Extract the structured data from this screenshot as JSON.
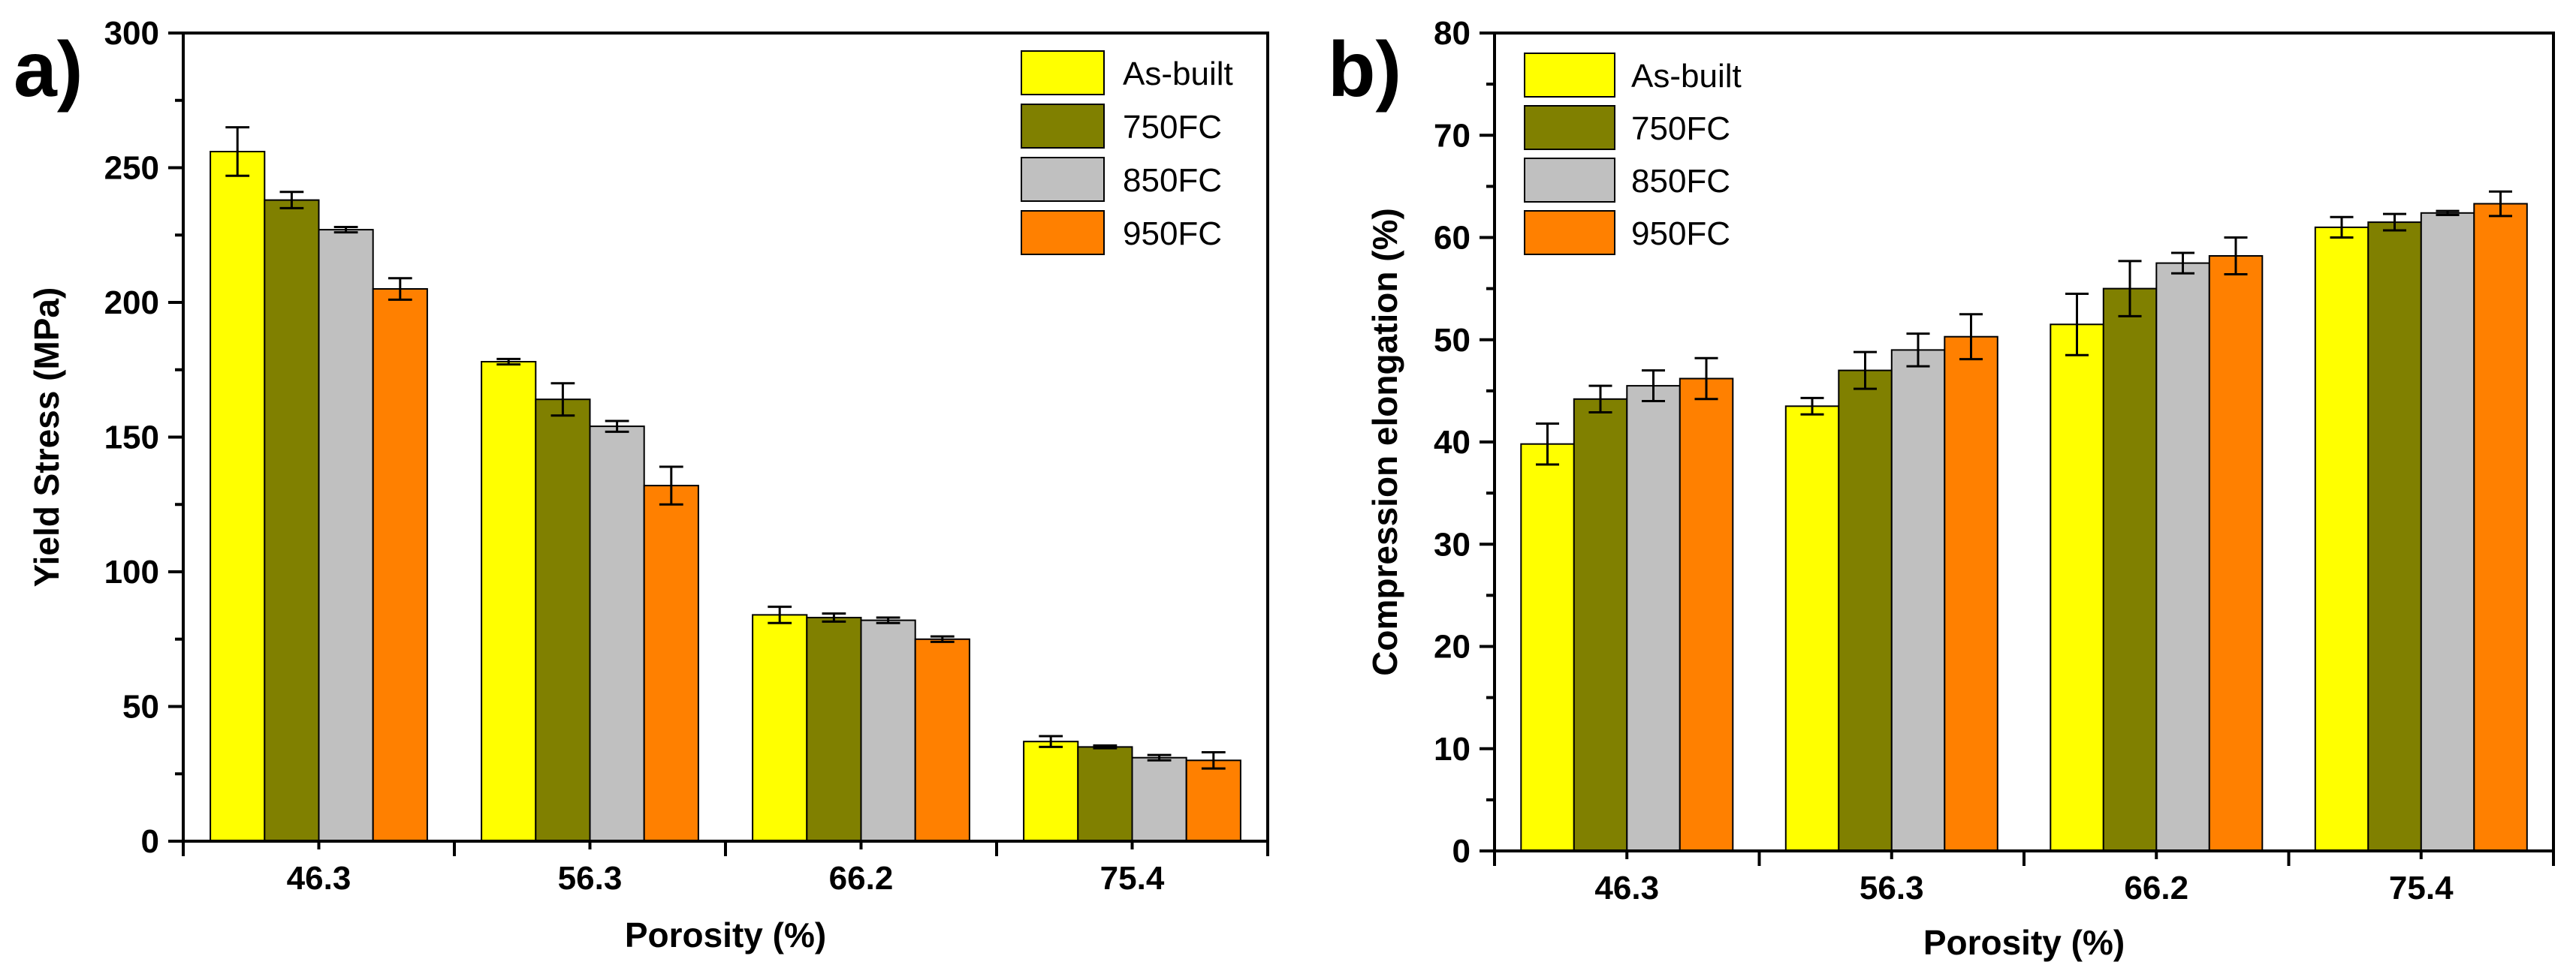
{
  "chart_data": [
    {
      "type": "bar",
      "panel_label": "a)",
      "title": "",
      "xlabel": "Porosity (%)",
      "ylabel": "Yield Stress (MPa)",
      "ylim": [
        0,
        300
      ],
      "yticks": [
        0,
        50,
        100,
        150,
        200,
        250,
        300
      ],
      "categories": [
        "46.3",
        "56.3",
        "66.2",
        "75.4"
      ],
      "legend_position": "top-right",
      "grid": false,
      "series": [
        {
          "name": "As-built",
          "color": "#FFFF00",
          "values": [
            256,
            178,
            84,
            37
          ],
          "errors": [
            9,
            1,
            3,
            2
          ]
        },
        {
          "name": "750FC",
          "color": "#808000",
          "values": [
            238,
            164,
            83,
            35
          ],
          "errors": [
            3,
            6,
            1.5,
            0.5
          ]
        },
        {
          "name": "850FC",
          "color": "#C0C0C0",
          "values": [
            227,
            154,
            82,
            31
          ],
          "errors": [
            1,
            2,
            1,
            1
          ]
        },
        {
          "name": "950FC",
          "color": "#FF8000",
          "values": [
            205,
            132,
            75,
            30
          ],
          "errors": [
            4,
            7,
            1,
            3
          ]
        }
      ]
    },
    {
      "type": "bar",
      "panel_label": "b)",
      "title": "",
      "xlabel": "Porosity (%)",
      "ylabel": "Compression elongation (%)",
      "ylim": [
        0,
        80
      ],
      "yticks": [
        0,
        10,
        20,
        30,
        40,
        50,
        60,
        70,
        80
      ],
      "categories": [
        "46.3",
        "56.3",
        "66.2",
        "75.4"
      ],
      "legend_position": "top-left",
      "grid": false,
      "series": [
        {
          "name": "As-built",
          "color": "#FFFF00",
          "values": [
            39.8,
            43.5,
            51.5,
            61.0
          ],
          "errors": [
            2,
            0.8,
            3,
            1
          ]
        },
        {
          "name": "750FC",
          "color": "#808000",
          "values": [
            44.2,
            47.0,
            55.0,
            61.5
          ],
          "errors": [
            1.3,
            1.8,
            2.7,
            0.8
          ]
        },
        {
          "name": "850FC",
          "color": "#C0C0C0",
          "values": [
            45.5,
            49.0,
            57.5,
            62.4
          ],
          "errors": [
            1.5,
            1.6,
            1,
            0.2
          ]
        },
        {
          "name": "950FC",
          "color": "#FF8000",
          "values": [
            46.2,
            50.3,
            58.2,
            63.3
          ],
          "errors": [
            2,
            2.2,
            1.8,
            1.2
          ]
        }
      ]
    }
  ]
}
